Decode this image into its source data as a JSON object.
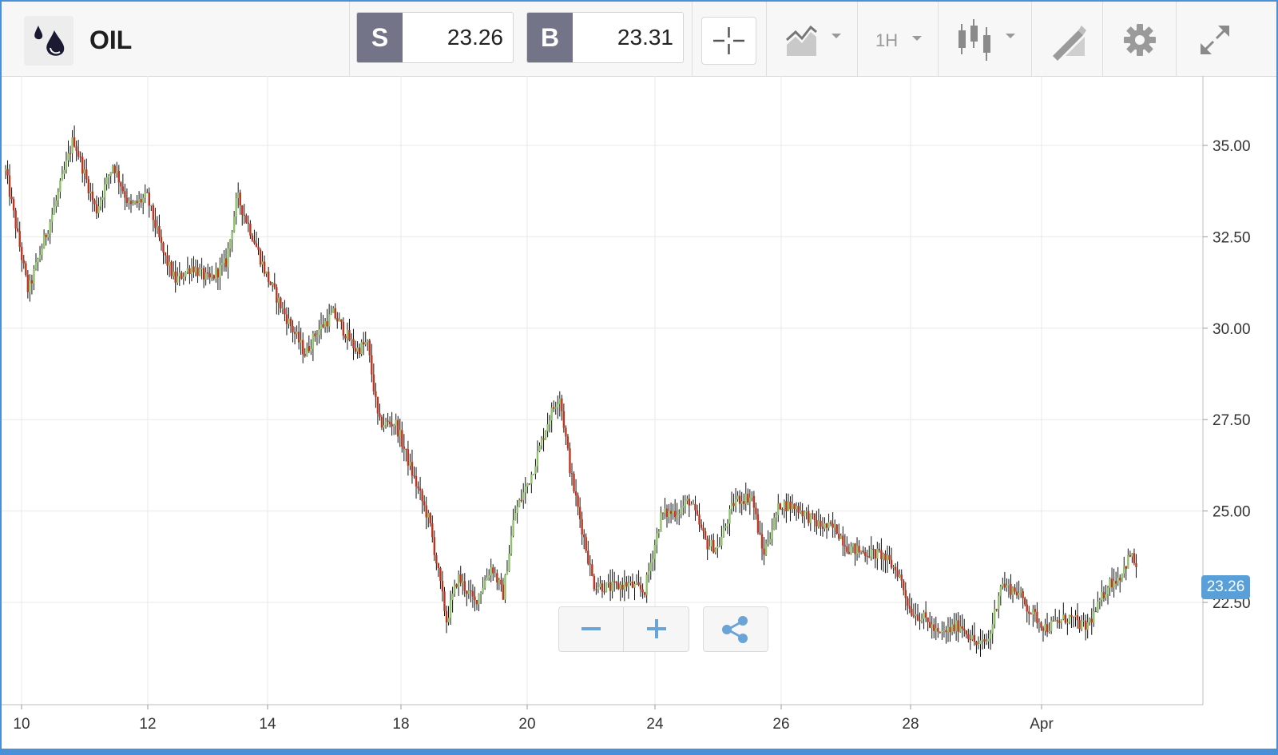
{
  "instrument": {
    "name": "OIL",
    "icon": "oil-drops-icon"
  },
  "sell": {
    "label": "S",
    "price": "23.26"
  },
  "buy": {
    "label": "B",
    "price": "23.31"
  },
  "toolbar": {
    "crosshair_icon": "crosshair-icon",
    "chart_type_icon": "line-chart-icon",
    "timeframe": "1H",
    "candle_icon": "candlestick-icon",
    "draw_icon": "pencil-ruler-icon",
    "settings_icon": "gear-icon",
    "fullscreen_icon": "expand-icon"
  },
  "current_price_badge": "23.26",
  "controls": {
    "zoom_out_icon": "minus-icon",
    "zoom_in_icon": "plus-icon",
    "share_icon": "share-icon"
  },
  "colors": {
    "up": "#8fc16d",
    "down": "#c0341d",
    "wick": "#111111",
    "accent": "#5aa0d8",
    "side_bg": "#737487"
  },
  "chart_data": {
    "type": "candlestick",
    "x_tick_labels": [
      "10",
      "12",
      "14",
      "18",
      "20",
      "24",
      "26",
      "28",
      "Apr"
    ],
    "y_tick_labels": [
      "35.00",
      "32.50",
      "30.00",
      "27.50",
      "25.00",
      "22.50"
    ],
    "ylim": [
      20.5,
      36.5
    ],
    "grid": true,
    "price_path": [
      [
        0,
        34.3
      ],
      [
        4,
        31.0
      ],
      [
        9,
        33.5
      ],
      [
        12,
        35.2
      ],
      [
        16,
        33.2
      ],
      [
        19,
        34.5
      ],
      [
        22,
        33.3
      ],
      [
        25,
        33.6
      ],
      [
        28,
        32.0
      ],
      [
        30,
        31.3
      ],
      [
        33,
        31.7
      ],
      [
        36,
        31.3
      ],
      [
        39,
        31.8
      ],
      [
        41,
        33.6
      ],
      [
        44,
        32.4
      ],
      [
        46,
        31.5
      ],
      [
        49,
        30.5
      ],
      [
        53,
        29.3
      ],
      [
        55,
        29.9
      ],
      [
        58,
        30.4
      ],
      [
        62,
        29.4
      ],
      [
        64,
        29.6
      ],
      [
        66,
        27.4
      ],
      [
        69,
        27.4
      ],
      [
        72,
        26.0
      ],
      [
        75,
        24.7
      ],
      [
        78,
        22.0
      ],
      [
        80,
        23.2
      ],
      [
        83,
        22.5
      ],
      [
        86,
        23.5
      ],
      [
        88,
        22.7
      ],
      [
        90,
        24.9
      ],
      [
        93,
        26.0
      ],
      [
        96,
        27.5
      ],
      [
        98,
        28.2
      ],
      [
        100,
        26.0
      ],
      [
        104,
        23.0
      ],
      [
        107,
        22.9
      ],
      [
        110,
        23.0
      ],
      [
        113,
        22.8
      ],
      [
        116,
        24.9
      ],
      [
        119,
        25.0
      ],
      [
        121,
        25.3
      ],
      [
        124,
        24.1
      ],
      [
        126,
        24.0
      ],
      [
        129,
        25.3
      ],
      [
        132,
        25.4
      ],
      [
        134,
        23.8
      ],
      [
        137,
        25.2
      ],
      [
        140,
        25.1
      ],
      [
        144,
        24.6
      ],
      [
        147,
        24.5
      ],
      [
        149,
        24.0
      ],
      [
        151,
        23.9
      ],
      [
        155,
        23.8
      ],
      [
        158,
        23.3
      ],
      [
        160,
        22.3
      ],
      [
        163,
        22.0
      ],
      [
        165,
        21.6
      ],
      [
        169,
        21.9
      ],
      [
        172,
        21.3
      ],
      [
        174,
        21.5
      ],
      [
        176,
        23.0
      ],
      [
        179,
        22.8
      ],
      [
        181,
        22.3
      ],
      [
        184,
        21.8
      ],
      [
        188,
        22.1
      ],
      [
        191,
        21.8
      ],
      [
        193,
        22.3
      ],
      [
        195,
        23.0
      ],
      [
        197,
        23.2
      ],
      [
        199,
        23.8
      ],
      [
        200,
        23.5
      ]
    ]
  }
}
